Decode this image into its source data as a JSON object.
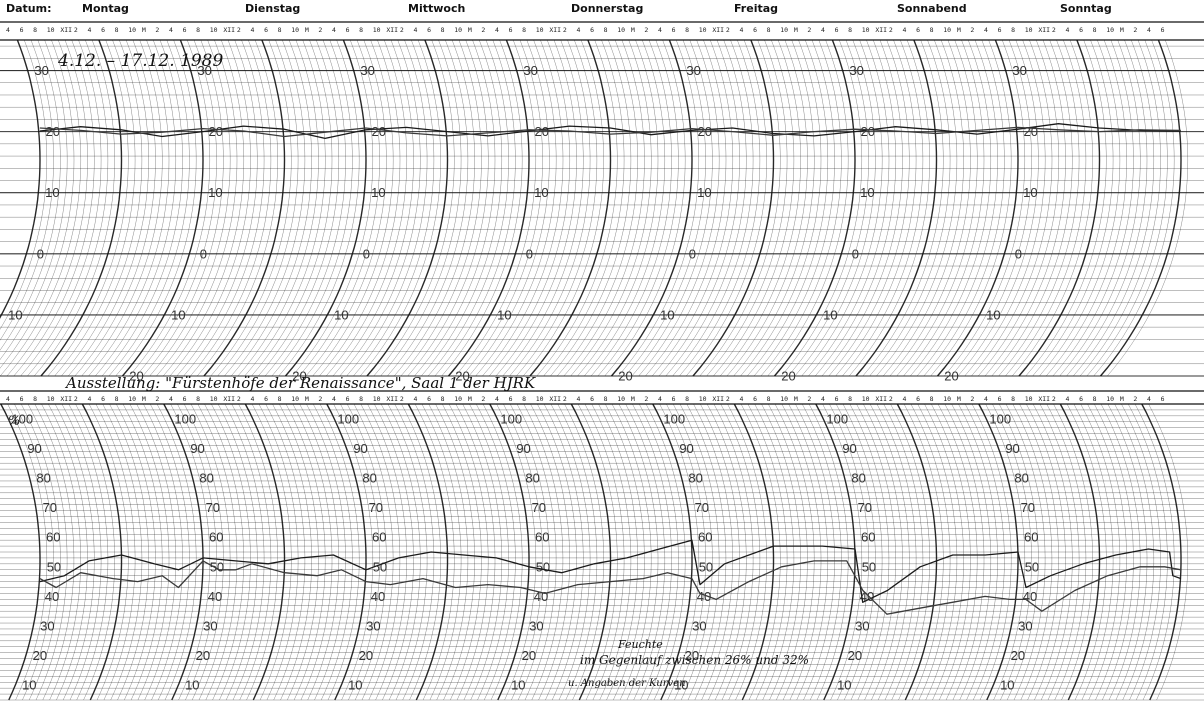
{
  "header": {
    "date_label": "Datum:",
    "days": [
      "Montag",
      "Dienstag",
      "Mittwoch",
      "Donnerstag",
      "Freitag",
      "Sonnabend",
      "Sonntag"
    ],
    "hour_sequence": [
      "4",
      "6",
      "8",
      "10",
      "XII",
      "2",
      "4",
      "6",
      "8",
      "10",
      "M",
      "2"
    ]
  },
  "annotations": {
    "date_range": "4.12. – 17.12. 1989",
    "exhibition": "Ausstellung: \"Fürstenhöfe der Renaissance\", Saal 1 der HJRK",
    "note_line1": "Feuchte",
    "note_line2": "im Gegenlauf zwischen 26% und 32%",
    "note_line3": "u. Angaben der Kurven",
    "percent_symbol": "%"
  },
  "chart_data": [
    {
      "type": "line",
      "name": "temperature",
      "title": "",
      "xlabel": "",
      "ylabel": "",
      "x_unit": "day",
      "xlim": [
        0,
        7
      ],
      "ylim": [
        -20,
        35
      ],
      "yticks": [
        30,
        20,
        10,
        0,
        -10,
        -20
      ],
      "ytick_labels": [
        "30",
        "20",
        "10",
        "0",
        "10",
        "20"
      ],
      "series": [
        {
          "values": [
            [
              0,
              20.1
            ],
            [
              0.25,
              20.8
            ],
            [
              0.5,
              20.3
            ],
            [
              0.75,
              19.2
            ],
            [
              1,
              20.0
            ],
            [
              1.25,
              20.9
            ],
            [
              1.5,
              20.4
            ],
            [
              1.75,
              18.9
            ],
            [
              2,
              20.3
            ],
            [
              2.25,
              20.7
            ],
            [
              2.5,
              20.0
            ],
            [
              2.75,
              19.3
            ],
            [
              3,
              20.1
            ],
            [
              3.25,
              20.9
            ],
            [
              3.5,
              20.6
            ],
            [
              3.75,
              19.5
            ],
            [
              4,
              20.2
            ],
            [
              4.25,
              20.6
            ],
            [
              4.5,
              19.7
            ],
            [
              4.75,
              19.3
            ],
            [
              5,
              20.0
            ],
            [
              5.25,
              20.8
            ],
            [
              5.5,
              20.3
            ],
            [
              5.75,
              19.6
            ],
            [
              6,
              20.4
            ],
            [
              6.25,
              21.3
            ],
            [
              6.5,
              20.6
            ],
            [
              6.75,
              20.2
            ],
            [
              7,
              20.1
            ]
          ]
        },
        {
          "values": [
            [
              0,
              20.6
            ],
            [
              0.25,
              20.2
            ],
            [
              0.5,
              19.6
            ],
            [
              0.75,
              19.9
            ],
            [
              1,
              20.5
            ],
            [
              1.25,
              20.1
            ],
            [
              1.5,
              19.2
            ],
            [
              1.75,
              19.9
            ],
            [
              2,
              20.6
            ],
            [
              2.25,
              19.8
            ],
            [
              2.5,
              19.3
            ],
            [
              2.75,
              19.8
            ],
            [
              3,
              20.3
            ],
            [
              3.25,
              20.1
            ],
            [
              3.5,
              19.6
            ],
            [
              3.75,
              19.9
            ],
            [
              4,
              20.5
            ],
            [
              4.25,
              20.0
            ],
            [
              4.5,
              19.4
            ],
            [
              4.75,
              20.0
            ],
            [
              5,
              20.4
            ],
            [
              5.25,
              20.1
            ],
            [
              5.5,
              19.7
            ],
            [
              5.75,
              20.2
            ],
            [
              6,
              20.7
            ],
            [
              6.25,
              20.3
            ],
            [
              6.5,
              20.0
            ],
            [
              6.75,
              20.3
            ],
            [
              7,
              20.2
            ]
          ]
        }
      ]
    },
    {
      "type": "line",
      "name": "relative_humidity",
      "title": "",
      "xlabel": "",
      "ylabel": "%",
      "x_unit": "day",
      "xlim": [
        0,
        7
      ],
      "ylim": [
        5,
        105
      ],
      "yticks": [
        100,
        90,
        80,
        70,
        60,
        50,
        40,
        30,
        20,
        10
      ],
      "ytick_labels": [
        "100",
        "90",
        "80",
        "70",
        "60",
        "50",
        "40",
        "30",
        "20",
        "10"
      ],
      "series": [
        {
          "values": [
            [
              0,
              45
            ],
            [
              0.15,
              47
            ],
            [
              0.3,
              52
            ],
            [
              0.5,
              54
            ],
            [
              0.7,
              51
            ],
            [
              0.85,
              49
            ],
            [
              1.0,
              53
            ],
            [
              1.2,
              52
            ],
            [
              1.4,
              51
            ],
            [
              1.6,
              53
            ],
            [
              1.8,
              54
            ],
            [
              2.0,
              49
            ],
            [
              2.2,
              53
            ],
            [
              2.4,
              55
            ],
            [
              2.6,
              54
            ],
            [
              2.8,
              53
            ],
            [
              3.0,
              50
            ],
            [
              3.2,
              48
            ],
            [
              3.4,
              51
            ],
            [
              3.6,
              53
            ],
            [
              3.8,
              56
            ],
            [
              4.0,
              59
            ],
            [
              4.05,
              44
            ],
            [
              4.2,
              51
            ],
            [
              4.5,
              57
            ],
            [
              4.8,
              57
            ],
            [
              5.0,
              56
            ],
            [
              5.05,
              38
            ],
            [
              5.2,
              42
            ],
            [
              5.4,
              50
            ],
            [
              5.6,
              54
            ],
            [
              5.8,
              54
            ],
            [
              6.0,
              55
            ],
            [
              6.05,
              43
            ],
            [
              6.2,
              47
            ],
            [
              6.4,
              51
            ],
            [
              6.6,
              54
            ],
            [
              6.8,
              56
            ],
            [
              6.93,
              55
            ],
            [
              6.95,
              47
            ],
            [
              7.0,
              46
            ]
          ]
        },
        {
          "values": [
            [
              0,
              46
            ],
            [
              0.1,
              43
            ],
            [
              0.25,
              48
            ],
            [
              0.45,
              46
            ],
            [
              0.6,
              45
            ],
            [
              0.75,
              47
            ],
            [
              0.85,
              43
            ],
            [
              1.0,
              52
            ],
            [
              1.1,
              49
            ],
            [
              1.2,
              49
            ],
            [
              1.3,
              51
            ],
            [
              1.5,
              48
            ],
            [
              1.7,
              47
            ],
            [
              1.85,
              49
            ],
            [
              2.0,
              45
            ],
            [
              2.15,
              44
            ],
            [
              2.35,
              46
            ],
            [
              2.55,
              43
            ],
            [
              2.75,
              44
            ],
            [
              2.95,
              43
            ],
            [
              3.1,
              41
            ],
            [
              3.3,
              44
            ],
            [
              3.5,
              45
            ],
            [
              3.7,
              46
            ],
            [
              3.85,
              48
            ],
            [
              4.0,
              46
            ],
            [
              4.05,
              41
            ],
            [
              4.15,
              39
            ],
            [
              4.35,
              45
            ],
            [
              4.55,
              50
            ],
            [
              4.75,
              52
            ],
            [
              4.95,
              52
            ],
            [
              5.05,
              42
            ],
            [
              5.2,
              34
            ],
            [
              5.4,
              36
            ],
            [
              5.6,
              38
            ],
            [
              5.8,
              40
            ],
            [
              5.95,
              39
            ],
            [
              6.05,
              39
            ],
            [
              6.15,
              35
            ],
            [
              6.35,
              42
            ],
            [
              6.55,
              47
            ],
            [
              6.75,
              50
            ],
            [
              6.9,
              50
            ],
            [
              7.0,
              49
            ]
          ]
        }
      ]
    }
  ]
}
